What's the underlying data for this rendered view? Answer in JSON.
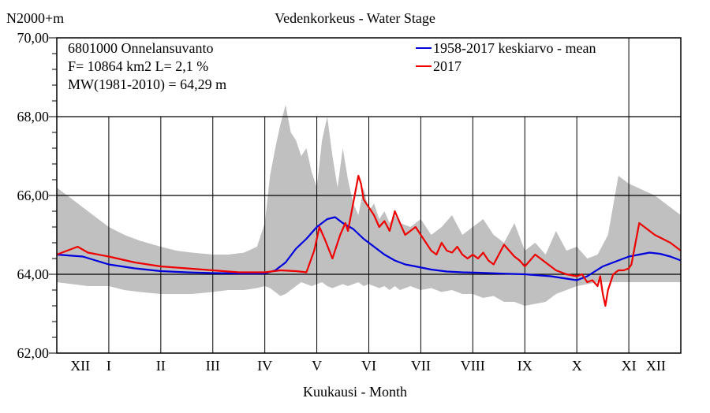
{
  "chart_data": {
    "type": "area",
    "title": "Vedenkorkeus - Water Stage",
    "ylabel": "N2000+m",
    "xlabel": "Kuukausi - Month",
    "ylim": [
      62,
      70
    ],
    "y_ticks": [
      "62,00",
      "64,00",
      "66,00",
      "68,00",
      "70,00"
    ],
    "y_tick_values": [
      62,
      64,
      66,
      68,
      70
    ],
    "months": [
      "XII",
      "I",
      "II",
      "III",
      "IV",
      "V",
      "VI",
      "VII",
      "VIII",
      "IX",
      "X",
      "XI",
      "XII"
    ],
    "info_lines": [
      "6801000 Onnelansuvanto",
      "F=  10864 km2 L=  2,1 %",
      "MW(1981-2010) = 64,29 m"
    ],
    "legend": [
      {
        "label": "1958-2017 keskiarvo - mean",
        "color": "#0000dd"
      },
      {
        "label": "2017",
        "color": "#ee0000"
      }
    ],
    "range_band": {
      "name": "",
      "color": "#c0c0c0",
      "x": [
        0,
        0.3,
        0.6,
        1,
        1.3,
        1.6,
        2,
        2.3,
        2.6,
        3,
        3.3,
        3.6,
        3.85,
        4.0,
        4.1,
        4.2,
        4.3,
        4.4,
        4.5,
        4.6,
        4.7,
        4.8,
        4.9,
        5.0,
        5.1,
        5.2,
        5.3,
        5.4,
        5.5,
        5.6,
        5.7,
        5.8,
        5.9,
        6.0,
        6.1,
        6.2,
        6.3,
        6.4,
        6.5,
        6.6,
        6.8,
        7.0,
        7.2,
        7.4,
        7.6,
        7.8,
        8.0,
        8.2,
        8.4,
        8.6,
        8.8,
        9.0,
        9.2,
        9.4,
        9.6,
        9.8,
        10.0,
        10.2,
        10.4,
        10.6,
        10.8,
        11.0,
        11.5,
        12
      ],
      "high": [
        66.2,
        65.9,
        65.6,
        65.2,
        65.0,
        64.85,
        64.7,
        64.6,
        64.55,
        64.5,
        64.5,
        64.55,
        64.7,
        65.3,
        66.5,
        67.2,
        67.8,
        68.3,
        67.6,
        67.4,
        67.0,
        67.2,
        66.6,
        66.2,
        67.4,
        68.0,
        67.0,
        66.2,
        67.2,
        66.4,
        65.8,
        65.5,
        66.2,
        65.6,
        65.8,
        65.4,
        65.6,
        65.3,
        65.5,
        65.3,
        65.2,
        65.4,
        65.0,
        65.2,
        65.5,
        65.0,
        65.2,
        65.4,
        65.0,
        64.8,
        65.3,
        64.6,
        64.8,
        64.5,
        65.1,
        64.6,
        64.7,
        64.4,
        64.5,
        65.0,
        66.5,
        66.3,
        66.0,
        65.5
      ],
      "low": [
        63.8,
        63.75,
        63.7,
        63.7,
        63.6,
        63.55,
        63.5,
        63.5,
        63.5,
        63.55,
        63.6,
        63.6,
        63.65,
        63.7,
        63.65,
        63.55,
        63.45,
        63.5,
        63.6,
        63.7,
        63.8,
        63.75,
        63.7,
        63.75,
        63.8,
        63.7,
        63.65,
        63.7,
        63.75,
        63.7,
        63.75,
        63.8,
        63.7,
        63.75,
        63.7,
        63.65,
        63.7,
        63.6,
        63.7,
        63.6,
        63.7,
        63.6,
        63.65,
        63.55,
        63.6,
        63.5,
        63.5,
        63.4,
        63.45,
        63.3,
        63.3,
        63.2,
        63.25,
        63.3,
        63.5,
        63.6,
        63.7,
        63.75,
        63.8,
        63.8,
        63.8,
        63.8,
        63.8,
        63.8
      ]
    },
    "series": [
      {
        "name": "1958-2017 keskiarvo - mean",
        "color": "#0000dd",
        "x": [
          0,
          0.5,
          1,
          1.5,
          2,
          2.5,
          3,
          3.5,
          4,
          4.2,
          4.4,
          4.6,
          4.8,
          5.0,
          5.2,
          5.35,
          5.5,
          5.7,
          5.9,
          6.1,
          6.3,
          6.5,
          6.7,
          6.9,
          7.2,
          7.5,
          7.8,
          8.1,
          8.5,
          9,
          9.5,
          10,
          10.2,
          10.5,
          10.8,
          11,
          11.2,
          11.4,
          11.6,
          11.8,
          12
        ],
        "y": [
          64.5,
          64.45,
          64.25,
          64.15,
          64.08,
          64.05,
          64.03,
          64.02,
          64.02,
          64.1,
          64.3,
          64.65,
          64.9,
          65.2,
          65.4,
          65.45,
          65.3,
          65.15,
          64.9,
          64.7,
          64.5,
          64.35,
          64.25,
          64.2,
          64.12,
          64.07,
          64.05,
          64.04,
          64.02,
          64.0,
          63.95,
          63.85,
          63.95,
          64.2,
          64.35,
          64.45,
          64.5,
          64.55,
          64.52,
          64.45,
          64.35
        ]
      },
      {
        "name": "2017",
        "color": "#ee0000",
        "x": [
          0,
          0.2,
          0.4,
          0.6,
          1,
          1.5,
          2,
          2.5,
          3,
          3.5,
          4,
          4.3,
          4.6,
          4.8,
          4.95,
          5.05,
          5.15,
          5.3,
          5.45,
          5.55,
          5.6,
          5.7,
          5.8,
          5.85,
          5.9,
          6.0,
          6.1,
          6.2,
          6.3,
          6.4,
          6.5,
          6.6,
          6.7,
          6.8,
          6.9,
          7.0,
          7.1,
          7.2,
          7.3,
          7.4,
          7.5,
          7.6,
          7.7,
          7.8,
          7.9,
          8.0,
          8.1,
          8.2,
          8.3,
          8.4,
          8.5,
          8.6,
          8.7,
          8.8,
          8.9,
          9.0,
          9.2,
          9.4,
          9.6,
          9.8,
          10.0,
          10.1,
          10.2,
          10.3,
          10.4,
          10.45,
          10.5,
          10.55,
          10.6,
          10.7,
          10.8,
          10.9,
          11.0,
          11.05,
          11.1,
          11.2,
          11.5,
          11.8,
          12
        ],
        "y": [
          64.5,
          64.6,
          64.7,
          64.55,
          64.45,
          64.3,
          64.2,
          64.15,
          64.1,
          64.05,
          64.05,
          64.1,
          64.08,
          64.05,
          64.6,
          65.2,
          64.9,
          64.4,
          65.0,
          65.3,
          65.1,
          65.8,
          66.5,
          66.3,
          65.9,
          65.7,
          65.5,
          65.2,
          65.35,
          65.1,
          65.6,
          65.3,
          65.0,
          65.1,
          65.2,
          65.0,
          64.8,
          64.6,
          64.5,
          64.8,
          64.6,
          64.55,
          64.7,
          64.5,
          64.4,
          64.5,
          64.4,
          64.55,
          64.35,
          64.25,
          64.5,
          64.75,
          64.6,
          64.45,
          64.35,
          64.2,
          64.5,
          64.3,
          64.1,
          64.0,
          63.95,
          64.0,
          63.8,
          63.85,
          63.7,
          63.95,
          63.5,
          63.2,
          63.6,
          64.0,
          64.1,
          64.1,
          64.15,
          64.25,
          64.6,
          65.3,
          65.0,
          64.8,
          64.6
        ]
      }
    ],
    "grid": true
  }
}
